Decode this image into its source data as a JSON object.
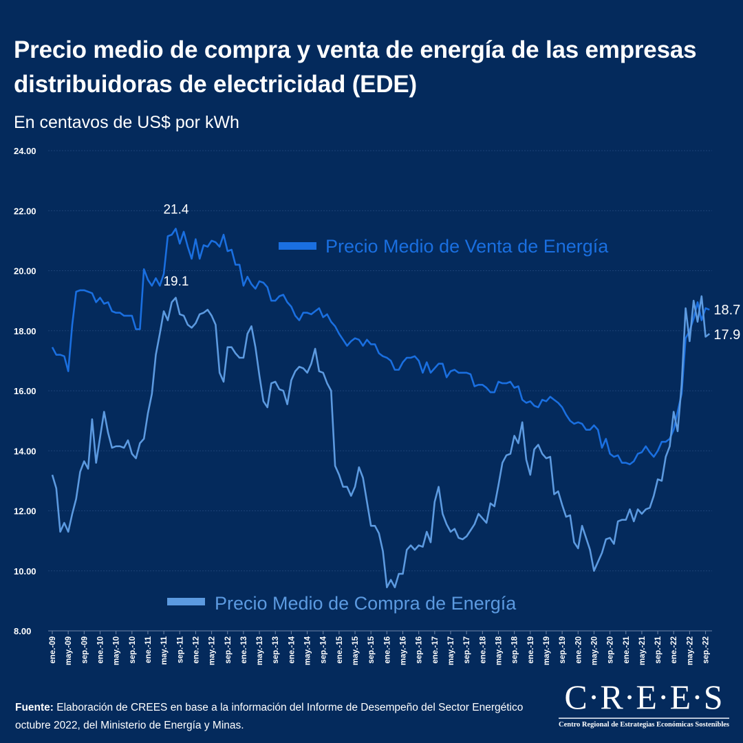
{
  "title": "Precio medio de compra y venta de energía de las empresas distribuidoras de electricidad (EDE)",
  "subtitle": "En centavos de US$ por kWh",
  "footer": {
    "label": "Fuente:",
    "text": " Elaboración de CREES en base a la información del Informe de Desempeño del Sector Energético octubre 2022, del Ministerio de Energía y Minas."
  },
  "logo": {
    "name": "C·R·E·E·S",
    "tagline": "Centro Regional de Estrategias Económicas Sostenibles"
  },
  "chart_data": {
    "type": "line",
    "frequency": "monthly",
    "x_start": "ene-09",
    "x_end": "oct-22",
    "ylim": [
      8,
      24
    ],
    "y_ticks": [
      "8.00",
      "10.00",
      "12.00",
      "14.00",
      "16.00",
      "18.00",
      "20.00",
      "22.00",
      "24.00"
    ],
    "x_tick_labels": [
      "ene.-09",
      "may.-09",
      "sep.-09",
      "ene.-10",
      "may.-10",
      "sep.-10",
      "ene.-11",
      "may.-11",
      "sep.-11",
      "ene.-12",
      "may.-12",
      "sep.-12",
      "ene.-13",
      "may.-13",
      "sep.-13",
      "ene.-14",
      "may.-14",
      "sep.-14",
      "ene.-15",
      "may.-15",
      "sep.-15",
      "ene.-16",
      "may.-16",
      "sep.-16",
      "ene.-17",
      "may.-17",
      "sep.-17",
      "ene.-18",
      "may.-18",
      "sep.-18",
      "ene.-19",
      "may.-19",
      "sep.-19",
      "ene.-20",
      "may.-20",
      "sep.-20",
      "ene.-21",
      "may.-21",
      "sep.-21",
      "ene.-22",
      "may.-22",
      "sep.-22"
    ],
    "grid": true,
    "series": [
      {
        "name": "Precio Medio de Venta de Energía",
        "color": "#1a6fe0",
        "annotations": [
          {
            "label": "21.4",
            "index": 31
          },
          {
            "label": "18.7",
            "index": 165
          }
        ],
        "values": [
          17.45,
          17.2,
          17.2,
          17.15,
          16.65,
          18.2,
          19.3,
          19.35,
          19.35,
          19.3,
          19.25,
          18.95,
          19.1,
          18.9,
          18.95,
          18.65,
          18.6,
          18.6,
          18.5,
          18.5,
          18.5,
          18.05,
          18.05,
          20.05,
          19.7,
          19.5,
          19.75,
          19.5,
          19.9,
          21.15,
          21.2,
          21.4,
          20.9,
          21.3,
          20.8,
          20.4,
          21.05,
          20.4,
          20.85,
          20.8,
          21.0,
          20.95,
          20.8,
          21.2,
          20.65,
          20.7,
          20.2,
          20.2,
          19.5,
          19.8,
          19.55,
          19.4,
          19.65,
          19.6,
          19.45,
          19.0,
          19.0,
          19.15,
          19.2,
          18.95,
          18.8,
          18.5,
          18.35,
          18.6,
          18.6,
          18.55,
          18.65,
          18.75,
          18.45,
          18.55,
          18.3,
          18.15,
          17.9,
          17.7,
          17.5,
          17.65,
          17.75,
          17.7,
          17.5,
          17.7,
          17.55,
          17.55,
          17.25,
          17.15,
          17.1,
          17.0,
          16.7,
          16.7,
          16.95,
          17.1,
          17.1,
          17.15,
          17.0,
          16.6,
          16.95,
          16.6,
          16.75,
          16.9,
          16.9,
          16.45,
          16.65,
          16.7,
          16.6,
          16.6,
          16.6,
          16.55,
          16.15,
          16.2,
          16.2,
          16.1,
          15.95,
          15.95,
          16.3,
          16.25,
          16.25,
          16.3,
          16.1,
          16.15,
          15.7,
          15.6,
          15.65,
          15.5,
          15.45,
          15.7,
          15.65,
          15.8,
          15.7,
          15.6,
          15.45,
          15.2,
          15.0,
          14.9,
          14.95,
          14.9,
          14.7,
          14.7,
          14.85,
          14.7,
          14.1,
          14.4,
          13.9,
          13.8,
          13.85,
          13.6,
          13.6,
          13.55,
          13.65,
          13.9,
          13.95,
          14.15,
          13.95,
          13.8,
          14.0,
          14.3,
          14.3,
          14.4,
          14.7,
          15.3,
          15.9,
          17.75,
          18.0,
          18.4,
          18.95,
          18.35,
          18.75,
          18.7
        ]
      },
      {
        "name": "Precio Medio de Compra de Energía",
        "color": "#5c9ae0",
        "annotations": [
          {
            "label": "19.1",
            "index": 31
          },
          {
            "label": "17.9",
            "index": 165
          }
        ],
        "values": [
          13.2,
          12.75,
          11.3,
          11.6,
          11.3,
          11.9,
          12.4,
          13.3,
          13.65,
          13.4,
          15.05,
          13.6,
          14.45,
          15.3,
          14.6,
          14.1,
          14.15,
          14.15,
          14.1,
          14.35,
          13.9,
          13.75,
          14.25,
          14.4,
          15.25,
          15.9,
          17.2,
          17.9,
          18.65,
          18.35,
          18.95,
          19.1,
          18.55,
          18.5,
          18.2,
          18.1,
          18.25,
          18.55,
          18.6,
          18.7,
          18.5,
          18.2,
          16.6,
          16.3,
          17.45,
          17.45,
          17.25,
          17.1,
          17.1,
          17.9,
          18.15,
          17.45,
          16.5,
          15.65,
          15.45,
          16.25,
          16.3,
          16.05,
          16.0,
          15.55,
          16.35,
          16.65,
          16.8,
          16.75,
          16.6,
          16.9,
          17.4,
          16.65,
          16.6,
          16.25,
          16.0,
          13.5,
          13.2,
          12.8,
          12.8,
          12.5,
          12.8,
          13.45,
          13.1,
          12.3,
          11.5,
          11.5,
          11.25,
          10.65,
          9.45,
          9.7,
          9.45,
          9.9,
          9.9,
          10.7,
          10.85,
          10.7,
          10.85,
          10.8,
          11.3,
          10.95,
          12.3,
          12.8,
          11.9,
          11.55,
          11.3,
          11.4,
          11.1,
          11.05,
          11.15,
          11.35,
          11.55,
          11.9,
          11.75,
          11.6,
          12.25,
          12.15,
          12.85,
          13.6,
          13.85,
          13.9,
          14.5,
          14.25,
          14.95,
          13.7,
          13.2,
          14.05,
          14.2,
          13.9,
          13.75,
          13.8,
          12.55,
          12.65,
          12.2,
          11.8,
          11.85,
          10.95,
          10.75,
          11.5,
          11.1,
          10.7,
          10.0,
          10.3,
          10.6,
          11.05,
          11.1,
          10.9,
          11.65,
          11.7,
          11.7,
          12.05,
          11.65,
          12.05,
          11.9,
          12.05,
          12.1,
          12.5,
          13.05,
          13.0,
          13.8,
          14.15,
          15.3,
          14.65,
          16.2,
          18.75,
          17.65,
          19.0,
          18.3,
          19.15,
          17.8,
          17.9
        ]
      }
    ]
  }
}
